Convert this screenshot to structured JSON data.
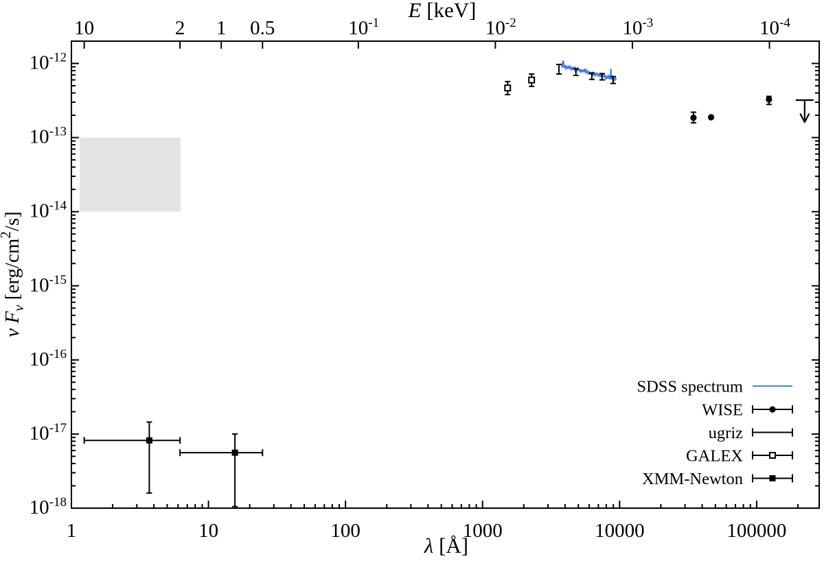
{
  "chart_data": {
    "type": "scatter",
    "title": "",
    "description": "Spectral energy distribution (SED): nu F_nu vs wavelength, log-log axes",
    "axes": {
      "bottom": {
        "label_symbol": "λ",
        "label_unit": " [Å]",
        "scale": "log",
        "range": [
          1,
          286000
        ],
        "ticks": [
          {
            "v": 1,
            "t": "1"
          },
          {
            "v": 10,
            "t": "10"
          },
          {
            "v": 100,
            "t": "100"
          },
          {
            "v": 1000,
            "t": "1000"
          },
          {
            "v": 10000,
            "t": "10000"
          },
          {
            "v": 100000,
            "t": "100000"
          }
        ]
      },
      "top": {
        "label_symbol": "E",
        "label_unit": " [keV]",
        "relation": "E[keV] = 12.398 / lambda[Angstrom]",
        "ticks": [
          {
            "E": 10,
            "t": "10",
            "sup": ""
          },
          {
            "E": 2,
            "t": "2",
            "sup": ""
          },
          {
            "E": 1,
            "t": "1",
            "sup": ""
          },
          {
            "E": 0.5,
            "t": "0.5",
            "sup": ""
          },
          {
            "E": 0.1,
            "t": "10",
            "sup": "-1"
          },
          {
            "E": 0.01,
            "t": "10",
            "sup": "-2"
          },
          {
            "E": 0.001,
            "t": "10",
            "sup": "-3"
          },
          {
            "E": 0.0001,
            "t": "10",
            "sup": "-4"
          }
        ]
      },
      "left": {
        "label": {
          "nu": "ν",
          "F": "F",
          "sub_nu": "ν",
          "unit_open": " [erg/cm",
          "sup2": "2",
          "unit_close": "/s]"
        },
        "scale": "log",
        "range": [
          1e-18,
          2e-12
        ],
        "tick_exponents": [
          -12,
          -13,
          -14,
          -15,
          -16,
          -17,
          -18
        ],
        "tick_base": "10"
      }
    },
    "shaded_region": {
      "lambda": [
        1.15,
        6.25
      ],
      "flux": [
        1e-14,
        1e-13
      ],
      "color": "#e3e3e3"
    },
    "series": [
      {
        "name": "SDSS spectrum",
        "kind": "line",
        "color": "#4a7fe0",
        "spectrum": {
          "lambda_range": [
            3780,
            9400
          ],
          "flux_start": 9.3e-13,
          "flux_end": 6.1e-13,
          "noise_frac": 0.045,
          "seed": 7,
          "emission_lines": [
            {
              "lambda": 3870,
              "amp": 0.16,
              "width": 28
            },
            {
              "lambda": 8640,
              "amp": 0.4,
              "width": 16
            },
            {
              "lambda": 5600,
              "amp": 0.05,
              "width": 60
            }
          ]
        }
      },
      {
        "name": "WISE",
        "kind": "points",
        "marker": "circle-filled",
        "points": [
          {
            "x": 34600,
            "y": 1.85e-13,
            "ylo": 1.58e-13,
            "yhi": 2.2e-13
          },
          {
            "x": 46500,
            "y": 1.88e-13
          },
          {
            "x": 123000,
            "y": 3.27e-13,
            "ylo": 2.8e-13,
            "yhi": 3.6e-13
          }
        ],
        "upper_limit": {
          "x": 224000,
          "y": 3.2e-13,
          "tip": 1.6e-13
        }
      },
      {
        "name": "ugriz",
        "kind": "errorbars",
        "points": [
          {
            "x": 3610,
            "y": 8.35e-13,
            "ylo": 7.2e-13,
            "yhi": 9.7e-13
          },
          {
            "x": 4800,
            "y": 7.6e-13,
            "ylo": 6.9e-13,
            "yhi": 8.5e-13
          },
          {
            "x": 6270,
            "y": 6.7e-13,
            "ylo": 6.1e-13,
            "yhi": 7.4e-13
          },
          {
            "x": 7450,
            "y": 6.6e-13,
            "ylo": 6e-13,
            "yhi": 7.3e-13
          },
          {
            "x": 8970,
            "y": 5.9e-13,
            "ylo": 5.37e-13,
            "yhi": 6.65e-13
          }
        ]
      },
      {
        "name": "GALEX",
        "kind": "points",
        "marker": "square-open",
        "points": [
          {
            "x": 1524,
            "y": 4.67e-13,
            "ylo": 3.8e-13,
            "yhi": 5.7e-13
          },
          {
            "x": 2280,
            "y": 5.98e-13,
            "ylo": 4.9e-13,
            "yhi": 7.2e-13
          }
        ]
      },
      {
        "name": "XMM-Newton",
        "kind": "points",
        "marker": "square-filled",
        "points": [
          {
            "x": 3.7,
            "y": 8.2e-18,
            "ylo": 1.6e-18,
            "yhi": 1.45e-17,
            "xlo": 1.24,
            "xhi": 6.2
          },
          {
            "x": 15.6,
            "y": 5.6e-18,
            "ylo": 1.05e-18,
            "yhi": 1e-17,
            "xlo": 6.2,
            "xhi": 24.8
          }
        ]
      }
    ],
    "legend": {
      "position": "right-lower",
      "entries": [
        {
          "label": "SDSS spectrum",
          "sample": "line"
        },
        {
          "label": "WISE",
          "sample": "errorbar-circle-filled"
        },
        {
          "label": "ugriz",
          "sample": "errorbar"
        },
        {
          "label": "GALEX",
          "sample": "errorbar-square-open"
        },
        {
          "label": "XMM-Newton",
          "sample": "errorbar-square-filled"
        }
      ]
    }
  },
  "style": {
    "frame_color": "#000000",
    "spectrum_color": "#4a7fe0",
    "shaded_color": "#e3e3e3",
    "background": "#ffffff"
  }
}
